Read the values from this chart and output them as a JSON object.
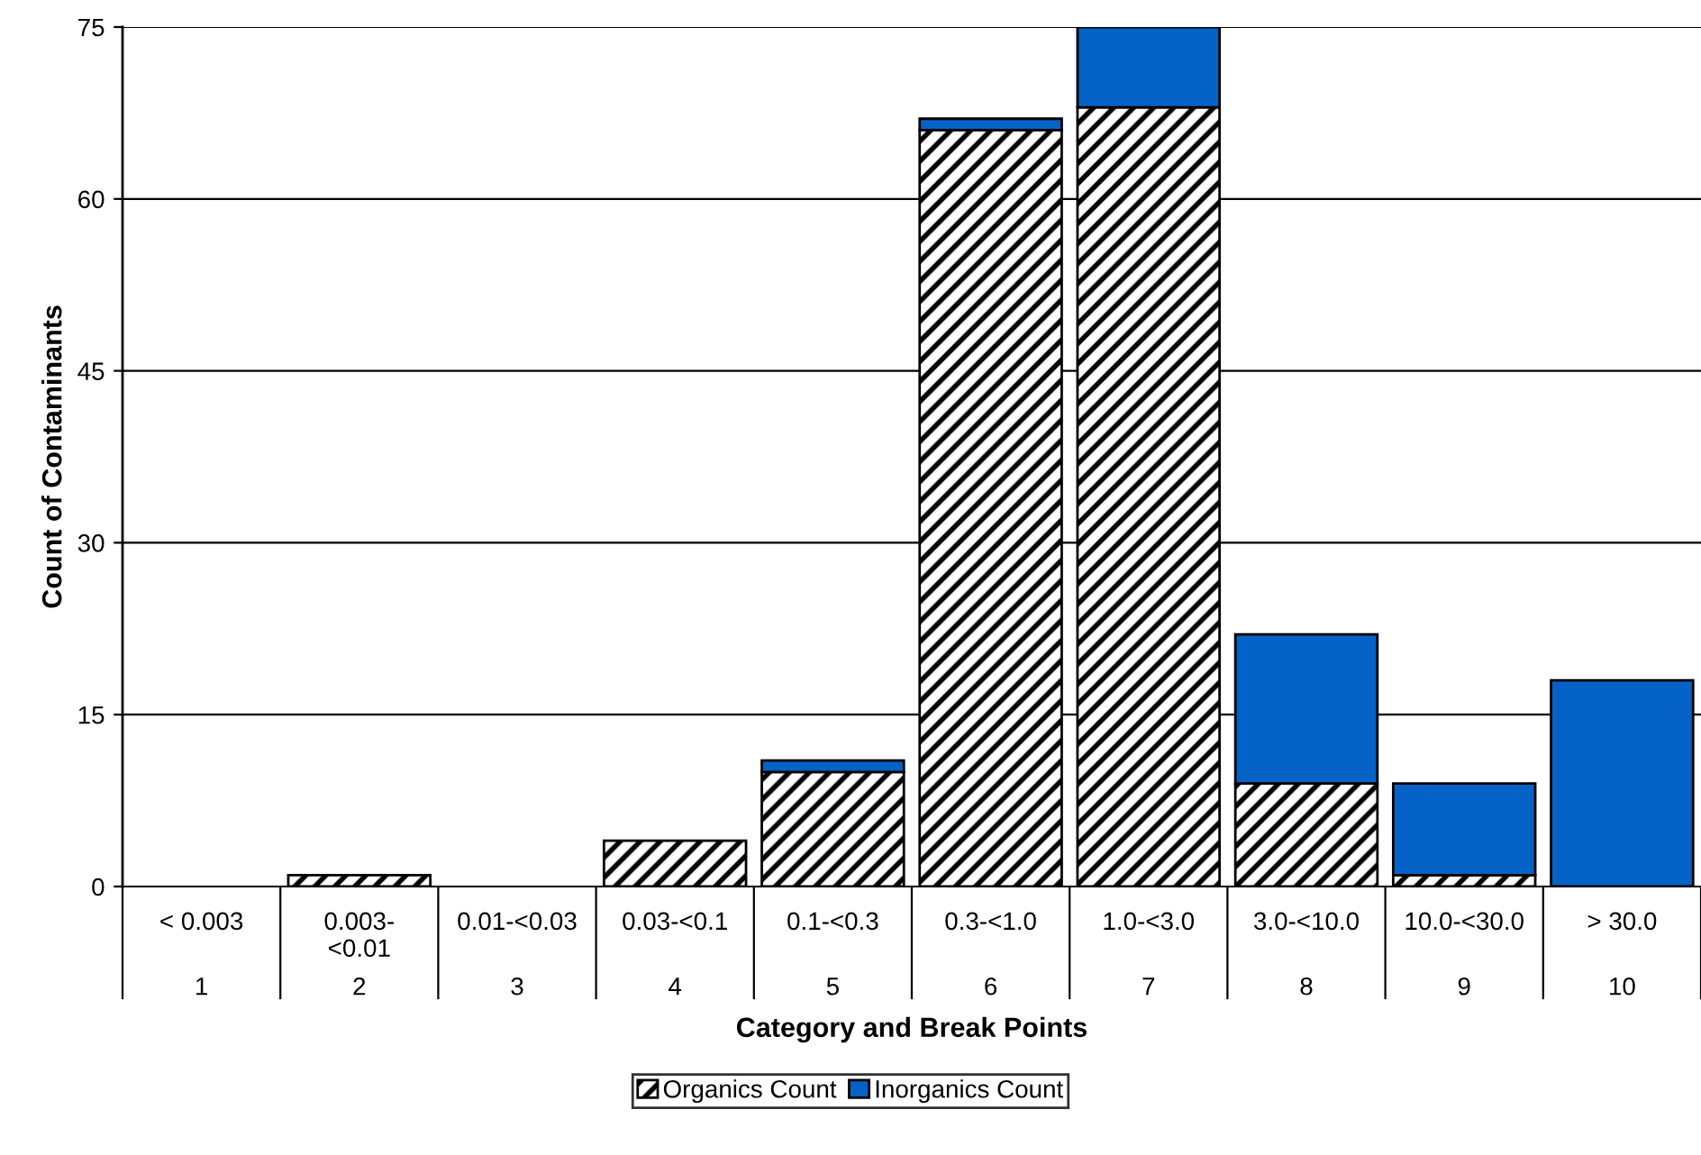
{
  "chart_data": {
    "type": "bar",
    "stacked": true,
    "xlabel": "Category and Break Points",
    "ylabel": "Count of Contaminants",
    "categories": [
      "< 0.003",
      "0.003-\n<0.01",
      "0.01-<0.03",
      "0.03-<0.1",
      "0.1-<0.3",
      "0.3-<1.0",
      "1.0-<3.0",
      "3.0-<10.0",
      "10.0-<30.0",
      "> 30.0"
    ],
    "series": [
      {
        "name": "Organics Count",
        "color": "#000000",
        "values": [
          0,
          1,
          0,
          4,
          10,
          66,
          68,
          9,
          1,
          0
        ]
      },
      {
        "name": "Inorganics Count",
        "color": "#0563c7",
        "values": [
          0,
          0,
          0,
          0,
          1,
          1,
          7,
          13,
          8,
          18
        ]
      }
    ],
    "ylim": [
      0,
      75
    ],
    "yticks": [
      0,
      15,
      30,
      45,
      60,
      75
    ],
    "grid": "y",
    "legend": "bottom",
    "annotations": [
      "1",
      "2",
      "3",
      "4",
      "5",
      "6",
      "7",
      "8",
      "9",
      "10"
    ]
  }
}
